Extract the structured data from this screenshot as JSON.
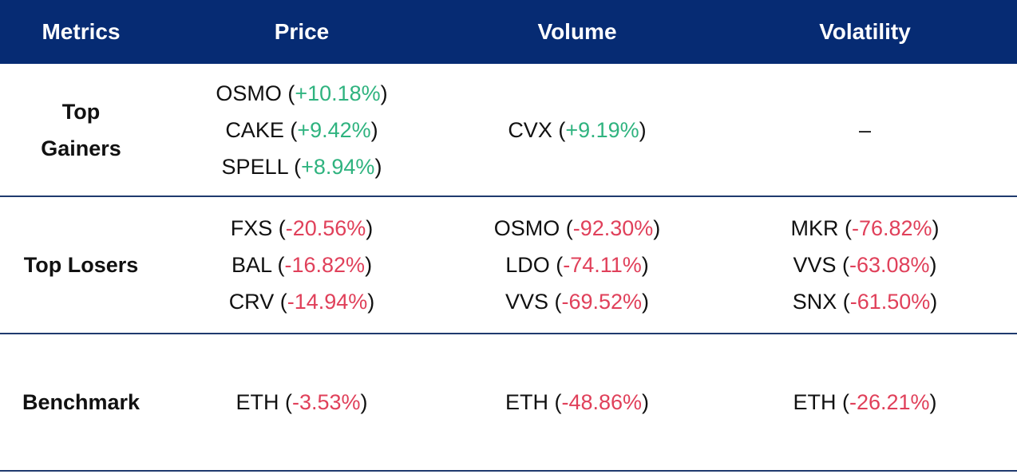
{
  "header": {
    "metrics": "Metrics",
    "price": "Price",
    "volume": "Volume",
    "volatility": "Volatility"
  },
  "rows": {
    "gainers": {
      "label": "Top Gainers",
      "price": [
        {
          "symbol": "OSMO",
          "change": "+10.18%"
        },
        {
          "symbol": "CAKE",
          "change": "+9.42%"
        },
        {
          "symbol": "SPELL",
          "change": "+8.94%"
        }
      ],
      "volume": [
        {
          "symbol": "CVX",
          "change": "+9.19%"
        }
      ],
      "volatility_text": "–"
    },
    "losers": {
      "label": "Top Losers",
      "price": [
        {
          "symbol": "FXS",
          "change": "-20.56%"
        },
        {
          "symbol": "BAL",
          "change": "-16.82%"
        },
        {
          "symbol": "CRV",
          "change": "-14.94%"
        }
      ],
      "volume": [
        {
          "symbol": "OSMO",
          "change": "-92.30%"
        },
        {
          "symbol": "LDO",
          "change": "-74.11%"
        },
        {
          "symbol": "VVS",
          "change": "-69.52%"
        }
      ],
      "volatility": [
        {
          "symbol": "MKR",
          "change": "-76.82%"
        },
        {
          "symbol": "VVS",
          "change": "-63.08%"
        },
        {
          "symbol": "SNX",
          "change": "-61.50%"
        }
      ]
    },
    "benchmark": {
      "label": "Benchmark",
      "price": [
        {
          "symbol": "ETH",
          "change": "-3.53%"
        }
      ],
      "volume": [
        {
          "symbol": "ETH",
          "change": "-48.86%"
        }
      ],
      "volatility": [
        {
          "symbol": "ETH",
          "change": "-26.21%"
        }
      ]
    }
  },
  "colors": {
    "header_bg": "#062b73",
    "positive": "#2fb37f",
    "negative": "#e0405a",
    "row_divider": "#1f3a6e"
  }
}
